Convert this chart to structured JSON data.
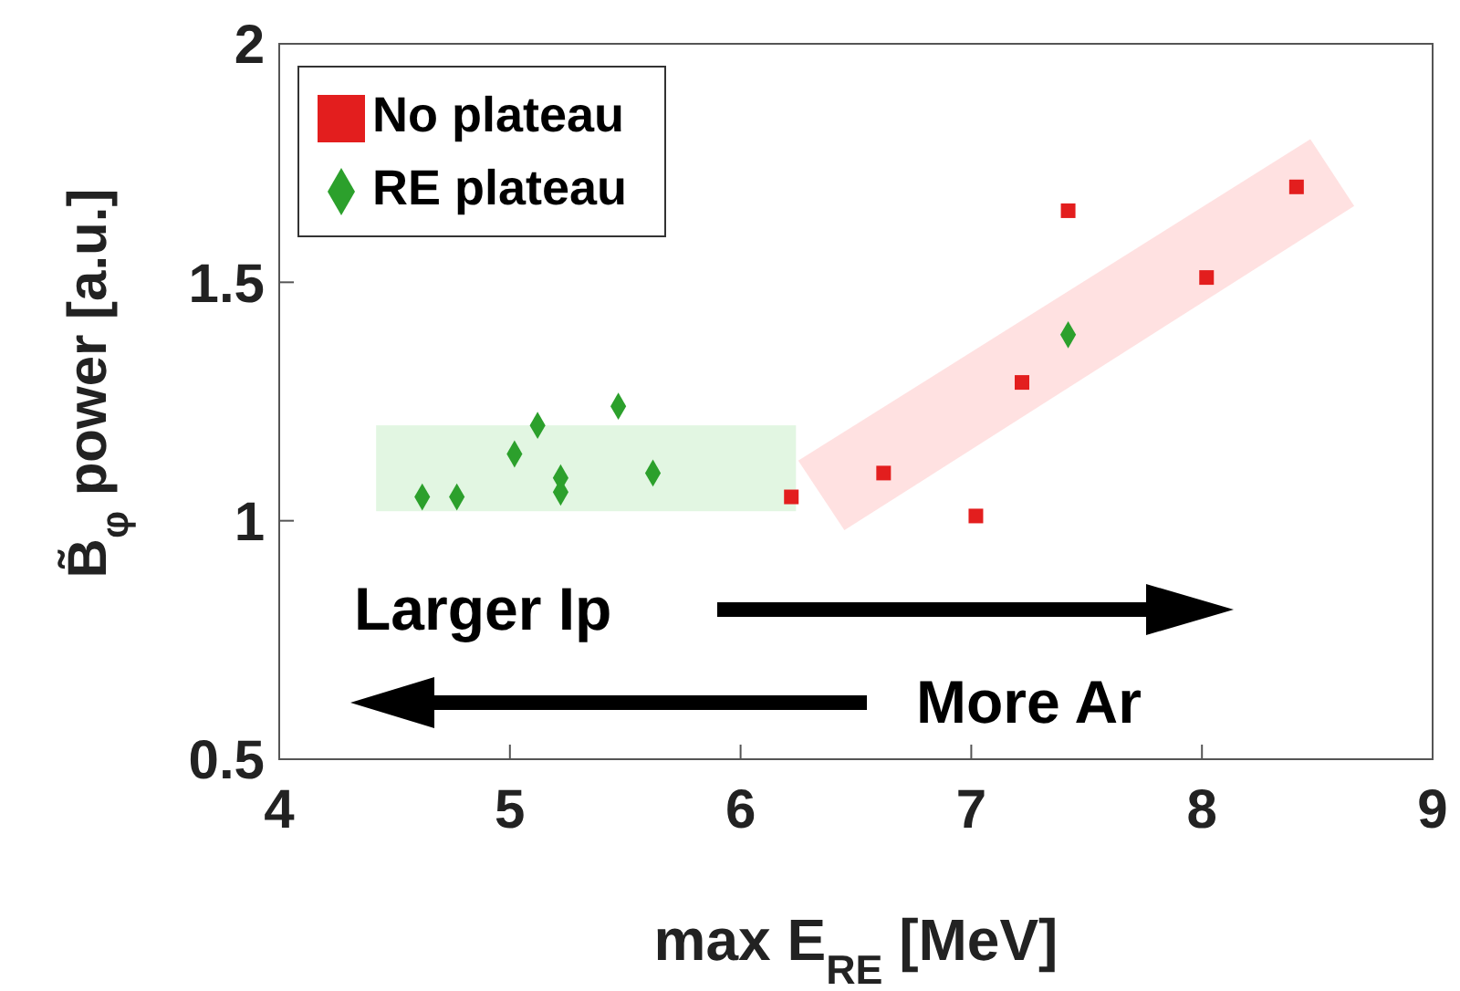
{
  "chart_data": {
    "type": "scatter",
    "xlabel": "max E$_{RE}$ [MeV]",
    "ylabel": "B̃$_{φ}$ power [a.u.]",
    "xlim": [
      4,
      9
    ],
    "xticks": [
      4,
      5,
      6,
      7,
      8,
      9
    ],
    "ylim": [
      0.5,
      2
    ],
    "yticks": [
      0.5,
      1,
      1.5,
      2
    ],
    "grid": false,
    "legend": "top left",
    "annotations": [
      "Larger Ip",
      "More Ar"
    ],
    "series": [
      {
        "name": "No plateau",
        "color": "#e31e1e",
        "marker": "square",
        "x": [
          6.22,
          6.62,
          7.02,
          7.22,
          7.42,
          8.02,
          8.41
        ],
        "values": [
          1.05,
          1.1,
          1.01,
          1.29,
          1.65,
          1.51,
          1.7
        ]
      },
      {
        "name": "RE plateau",
        "color": "#2ca02c",
        "marker": "diamond",
        "x": [
          4.62,
          4.77,
          5.02,
          5.12,
          5.22,
          5.22,
          5.47,
          5.62,
          7.42
        ],
        "values": [
          1.05,
          1.05,
          1.14,
          1.2,
          1.09,
          1.06,
          1.24,
          1.1,
          1.39
        ]
      }
    ]
  }
}
